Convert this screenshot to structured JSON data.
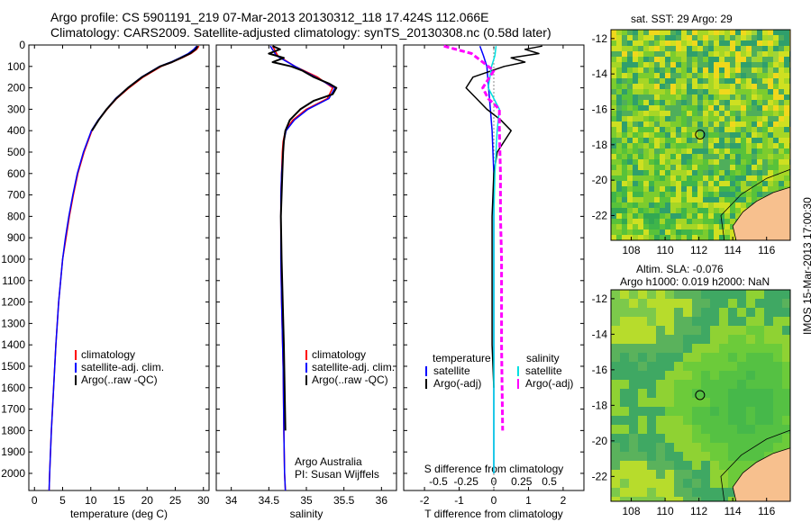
{
  "header": {
    "line1": "Argo profile: CS 5901191_219 07-Mar-2013 20130312_118 17.424S 112.066E",
    "line2": "Climatology: CARS2009. Satellite-adjusted climatology: synTS_20130308.nc (0.58d later)"
  },
  "colors": {
    "climatology": "#ff0000",
    "satellite": "#0000ff",
    "argo": "#000000",
    "sat_salinity": "#00e0e0",
    "argo_salinity": "#ff00ff",
    "land": "#f7c08e"
  },
  "chart_data": [
    {
      "type": "line",
      "id": "temperature",
      "xlabel": "temperature (deg C)",
      "ylabel": "",
      "xlim": [
        -1,
        31
      ],
      "ylim": [
        2080,
        0
      ],
      "xticks": [
        "0",
        "5",
        "10",
        "15",
        "20",
        "25",
        "30"
      ],
      "yticks": [
        "0",
        "100",
        "200",
        "300",
        "400",
        "500",
        "600",
        "700",
        "800",
        "900",
        "1000",
        "1100",
        "1200",
        "1300",
        "1400",
        "1500",
        "1600",
        "1700",
        "1800",
        "1900",
        "2000"
      ],
      "legend": [
        "climatology",
        "satellite-adj. clim.",
        "Argo(..raw -QC)"
      ],
      "series": [
        {
          "name": "climatology",
          "depth": [
            5,
            20,
            40,
            60,
            80,
            100,
            150,
            200,
            250,
            300,
            350,
            400,
            500,
            600,
            700,
            800,
            900,
            1000,
            1200,
            1400,
            1600,
            1800,
            2000,
            2080
          ],
          "values": [
            29.2,
            28.8,
            27.8,
            26.2,
            24.5,
            22.5,
            19.3,
            16.8,
            14.6,
            12.9,
            11.4,
            10.2,
            8.8,
            7.7,
            6.9,
            6.2,
            5.6,
            5.0,
            4.3,
            3.8,
            3.4,
            3.0,
            2.7,
            2.6
          ]
        },
        {
          "name": "satellite-adj. clim.",
          "depth": [
            5,
            20,
            40,
            60,
            80,
            100,
            150,
            200,
            250,
            300,
            350,
            400,
            500,
            600,
            700,
            800,
            900,
            1000,
            1200,
            1400,
            1600,
            1800,
            2000,
            2080
          ],
          "values": [
            28.8,
            28.3,
            27.3,
            25.8,
            24.2,
            22.2,
            19.0,
            16.6,
            14.4,
            12.8,
            11.3,
            10.1,
            8.7,
            7.6,
            6.8,
            6.1,
            5.5,
            5.0,
            4.3,
            3.8,
            3.4,
            3.0,
            2.7,
            2.6
          ]
        },
        {
          "name": "Argo(..raw -QC)",
          "depth": [
            5,
            20,
            40,
            60,
            80,
            100,
            150,
            200,
            250,
            300,
            350,
            400
          ],
          "values": [
            29.0,
            28.6,
            27.6,
            26.0,
            24.4,
            22.3,
            19.1,
            16.6,
            14.5,
            12.8,
            11.4,
            10.2
          ]
        }
      ]
    },
    {
      "type": "line",
      "id": "salinity",
      "xlabel": "salinity",
      "xlim": [
        33.8,
        36.2
      ],
      "ylim": [
        2080,
        0
      ],
      "xticks": [
        "34",
        "34.5",
        "35",
        "35.5",
        "36"
      ],
      "legend": [
        "climatology",
        "satellite-adj. clim.",
        "Argo(..raw -QC)"
      ],
      "annotation": [
        "Argo Australia",
        "PI: Susan Wijffels"
      ],
      "series": [
        {
          "name": "climatology",
          "depth": [
            5,
            50,
            100,
            150,
            200,
            250,
            300,
            350,
            400,
            450,
            500,
            600,
            700,
            800,
            1000,
            1200,
            1500,
            1800,
            2000,
            2080
          ],
          "values": [
            34.55,
            34.62,
            34.85,
            35.15,
            35.35,
            35.28,
            35.0,
            34.82,
            34.72,
            34.69,
            34.68,
            34.67,
            34.66,
            34.66,
            34.66,
            34.67,
            34.69,
            34.7,
            34.71,
            34.72
          ]
        },
        {
          "name": "satellite-adj. clim.",
          "depth": [
            5,
            50,
            100,
            150,
            200,
            250,
            300,
            350,
            400,
            450,
            500,
            600,
            700,
            800,
            1000,
            1200,
            1500,
            1800,
            2000,
            2080
          ],
          "values": [
            34.52,
            34.6,
            34.85,
            35.12,
            35.38,
            35.3,
            35.02,
            34.84,
            34.73,
            34.7,
            34.69,
            34.67,
            34.66,
            34.66,
            34.66,
            34.67,
            34.69,
            34.7,
            34.71,
            34.72
          ]
        },
        {
          "name": "Argo(..raw -QC)",
          "depth": [
            5,
            20,
            40,
            60,
            80,
            100,
            120,
            150,
            180,
            200,
            230,
            260,
            300,
            350,
            400,
            450,
            500,
            600,
            800,
            1000,
            1400,
            1800
          ],
          "values": [
            34.55,
            34.65,
            34.5,
            34.7,
            34.55,
            34.8,
            34.95,
            35.1,
            35.3,
            35.4,
            35.35,
            35.1,
            34.92,
            34.78,
            34.72,
            34.7,
            34.69,
            34.68,
            34.66,
            34.67,
            34.7,
            34.72
          ]
        }
      ]
    },
    {
      "type": "line",
      "id": "difference",
      "xlabel": "T difference from climatology",
      "xlabel_top": "S difference from climatology",
      "xlim": [
        -2.6,
        2.6
      ],
      "ylim": [
        2080,
        0
      ],
      "xticks": [
        "-2",
        "-1",
        "0",
        "1",
        "2"
      ],
      "xticks_s": [
        "-0.5",
        "-0.25",
        "0",
        "0.25",
        "0.5"
      ],
      "legend_t": {
        "title": "temperature",
        "items": [
          "satellite",
          "Argo(-adj)"
        ]
      },
      "legend_s": {
        "title": "salinity",
        "items": [
          "satellite",
          "Argo(-adj)"
        ]
      },
      "series": [
        {
          "name": "temperature satellite",
          "depth": [
            5,
            50,
            100,
            200,
            300,
            400,
            600,
            800,
            1000,
            1400,
            1800,
            2000
          ],
          "values": [
            -0.4,
            -0.3,
            -0.2,
            -0.15,
            -0.1,
            -0.05,
            0,
            0,
            0,
            0,
            0,
            0
          ]
        },
        {
          "name": "temperature Argo(-adj)",
          "depth": [
            5,
            20,
            40,
            60,
            80,
            100,
            150,
            200,
            250,
            300,
            350,
            400,
            500,
            600,
            800,
            1000,
            1400,
            1600
          ],
          "values": [
            1.4,
            0.9,
            1.3,
            0.5,
            0.9,
            0.3,
            -0.6,
            -0.8,
            -0.5,
            -0.2,
            0.2,
            0.5,
            0.1,
            0,
            -0.05,
            -0.05,
            -0.05,
            0
          ]
        },
        {
          "name": "salinity satellite",
          "depth": [
            5,
            50,
            100,
            200,
            300,
            400,
            600,
            800,
            1000,
            1400,
            1800,
            2000
          ],
          "values": [
            0.02,
            0.01,
            -0.02,
            -0.05,
            0.05,
            0.03,
            0.01,
            0,
            0,
            0,
            0,
            0
          ]
        },
        {
          "name": "salinity Argo(-adj)",
          "depth": [
            5,
            40,
            80,
            120,
            200,
            250,
            300,
            400,
            600,
            800,
            1000,
            1400,
            1800
          ],
          "values": [
            -0.45,
            -0.2,
            -0.1,
            0.0,
            -0.1,
            -0.05,
            0.05,
            0.05,
            0.06,
            0.06,
            0.07,
            0.07,
            0.08
          ]
        }
      ]
    },
    {
      "type": "heatmap",
      "id": "sst-map",
      "title": "sat. SST: 29 Argo: 29",
      "xlim": [
        106.8,
        117.4
      ],
      "ylim": [
        -23.4,
        -11.5
      ],
      "xticks": [
        "108",
        "110",
        "112",
        "114",
        "116"
      ],
      "yticks": [
        "-12",
        "-14",
        "-16",
        "-18",
        "-20",
        "-22"
      ],
      "argo_position": [
        112.066,
        -17.424
      ]
    },
    {
      "type": "heatmap",
      "id": "sla-map",
      "title": "Altim. SLA: -0.076",
      "subtitle": "Argo h1000: 0.019 h2000: NaN",
      "xlim": [
        106.8,
        117.4
      ],
      "ylim": [
        -23.4,
        -11.5
      ],
      "xticks": [
        "108",
        "110",
        "112",
        "114",
        "116"
      ],
      "yticks": [
        "-12",
        "-14",
        "-16",
        "-18",
        "-20",
        "-22"
      ],
      "argo_position": [
        112.066,
        -17.424
      ]
    }
  ],
  "footer_stamp": "IMOS 15-Mar-2013 17:00:30"
}
